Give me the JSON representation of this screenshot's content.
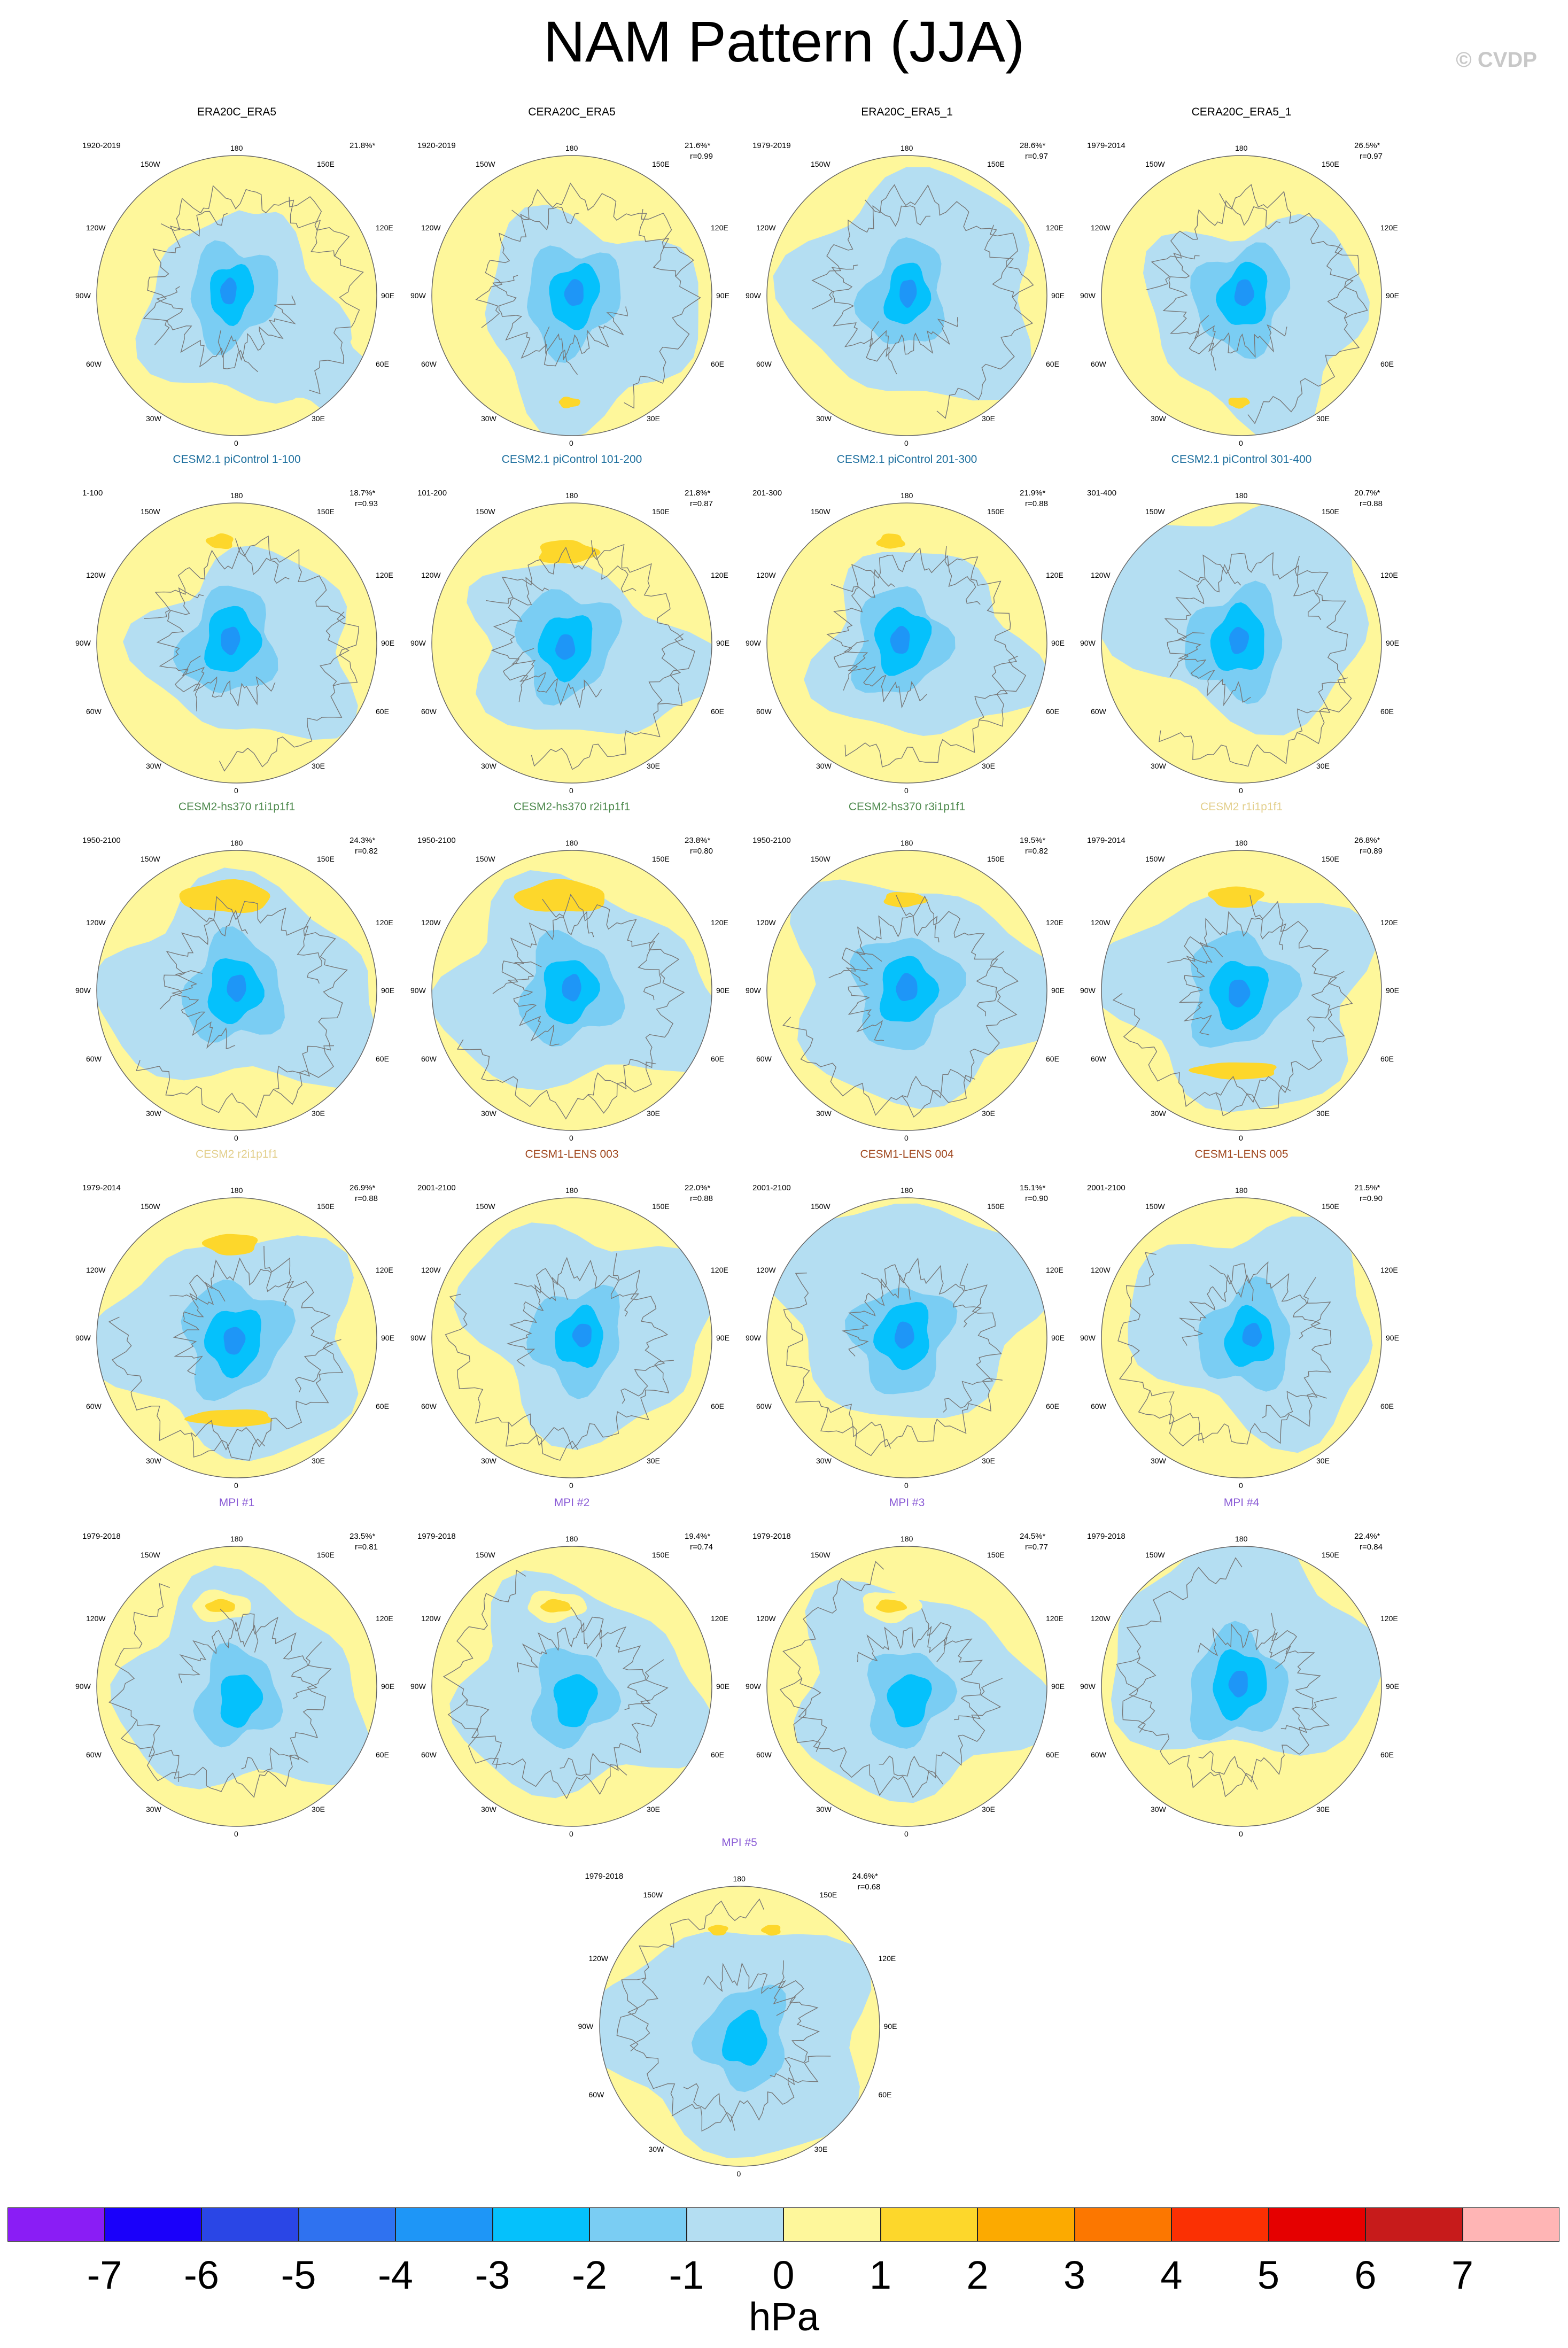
{
  "title": "NAM Pattern (JJA)",
  "watermark": "© CVDP",
  "colorbar": {
    "unit": "hPa",
    "ticks": [
      "-7",
      "-6",
      "-5",
      "-4",
      "-3",
      "-2",
      "-1",
      "0",
      "1",
      "2",
      "3",
      "4",
      "5",
      "6",
      "7"
    ],
    "colors": [
      "#8a1df5",
      "#1a00fa",
      "#2a46e6",
      "#2f72f0",
      "#1e96f7",
      "#05c1fc",
      "#7acdf3",
      "#b4def2",
      "#fef79b",
      "#fdd72b",
      "#fcaa00",
      "#fc7700",
      "#fb3003",
      "#e50000",
      "#c71b1b",
      "#ffb5b5"
    ]
  },
  "map_labels": {
    "top": "180",
    "bottom": "0",
    "left": "90W",
    "right": "90E",
    "ul": "150W",
    "ur": "150E",
    "lu": "120W",
    "ru": "120E",
    "ll": "60W",
    "rl": "60E",
    "bl": "30W",
    "br": "30E"
  },
  "panels": [
    {
      "title": "ERA20C_ERA5",
      "title_color": "#000000",
      "period": "1920-2019",
      "pct": "21.8%*",
      "r": "",
      "pattern": 0,
      "row": 0,
      "col": 0
    },
    {
      "title": "CERA20C_ERA5",
      "title_color": "#000000",
      "period": "1920-2019",
      "pct": "21.6%*",
      "r": "r=0.99",
      "pattern": 1,
      "row": 0,
      "col": 1
    },
    {
      "title": "ERA20C_ERA5_1",
      "title_color": "#000000",
      "period": "1979-2019",
      "pct": "28.6%*",
      "r": "r=0.97",
      "pattern": 2,
      "row": 0,
      "col": 2
    },
    {
      "title": "CERA20C_ERA5_1",
      "title_color": "#000000",
      "period": "1979-2014",
      "pct": "26.5%*",
      "r": "r=0.97",
      "pattern": 1,
      "row": 0,
      "col": 3
    },
    {
      "title": "CESM2.1 piControl 1-100",
      "title_color": "#1d6f9e",
      "period": "1-100",
      "pct": "18.7%*",
      "r": "r=0.93",
      "pattern": 3,
      "row": 1,
      "col": 0
    },
    {
      "title": "CESM2.1 piControl 101-200",
      "title_color": "#1d6f9e",
      "period": "101-200",
      "pct": "21.8%*",
      "r": "r=0.87",
      "pattern": 4,
      "row": 1,
      "col": 1
    },
    {
      "title": "CESM2.1 piControl 201-300",
      "title_color": "#1d6f9e",
      "period": "201-300",
      "pct": "21.9%*",
      "r": "r=0.88",
      "pattern": 3,
      "row": 1,
      "col": 2
    },
    {
      "title": "CESM2.1 piControl 301-400",
      "title_color": "#1d6f9e",
      "period": "301-400",
      "pct": "20.7%*",
      "r": "r=0.88",
      "pattern": 5,
      "row": 1,
      "col": 3
    },
    {
      "title": "CESM2-hs370 r1i1p1f1",
      "title_color": "#4e8a4e",
      "period": "1950-2100",
      "pct": "24.3%*",
      "r": "r=0.82",
      "pattern": 6,
      "row": 2,
      "col": 0
    },
    {
      "title": "CESM2-hs370 r2i1p1f1",
      "title_color": "#4e8a4e",
      "period": "1950-2100",
      "pct": "23.8%*",
      "r": "r=0.80",
      "pattern": 6,
      "row": 2,
      "col": 1
    },
    {
      "title": "CESM2-hs370 r3i1p1f1",
      "title_color": "#4e8a4e",
      "period": "1950-2100",
      "pct": "19.5%*",
      "r": "r=0.82",
      "pattern": 7,
      "row": 2,
      "col": 2
    },
    {
      "title": "CESM2 r1i1p1f1",
      "title_color": "#e3cf8c",
      "period": "1979-2014",
      "pct": "26.8%*",
      "r": "r=0.89",
      "pattern": 8,
      "row": 2,
      "col": 3
    },
    {
      "title": "CESM2 r2i1p1f1",
      "title_color": "#e3cf8c",
      "period": "1979-2014",
      "pct": "26.9%*",
      "r": "r=0.88",
      "pattern": 8,
      "row": 3,
      "col": 0
    },
    {
      "title": "CESM1-LENS 003",
      "title_color": "#a0481f",
      "period": "2001-2100",
      "pct": "22.0%*",
      "r": "r=0.88",
      "pattern": 9,
      "row": 3,
      "col": 1
    },
    {
      "title": "CESM1-LENS 004",
      "title_color": "#a0481f",
      "period": "2001-2100",
      "pct": "15.1%*",
      "r": "r=0.90",
      "pattern": 5,
      "row": 3,
      "col": 2
    },
    {
      "title": "CESM1-LENS 005",
      "title_color": "#a0481f",
      "period": "2001-2100",
      "pct": "21.5%*",
      "r": "r=0.90",
      "pattern": 9,
      "row": 3,
      "col": 3
    },
    {
      "title": "MPI #1",
      "title_color": "#8a5bd6",
      "period": "1979-2018",
      "pct": "23.5%*",
      "r": "r=0.81",
      "pattern": 10,
      "row": 4,
      "col": 0
    },
    {
      "title": "MPI #2",
      "title_color": "#8a5bd6",
      "period": "1979-2018",
      "pct": "19.4%*",
      "r": "r=0.74",
      "pattern": 10,
      "row": 4,
      "col": 1
    },
    {
      "title": "MPI #3",
      "title_color": "#8a5bd6",
      "period": "1979-2018",
      "pct": "24.5%*",
      "r": "r=0.77",
      "pattern": 10,
      "row": 4,
      "col": 2
    },
    {
      "title": "MPI #4",
      "title_color": "#8a5bd6",
      "period": "1979-2018",
      "pct": "22.4%*",
      "r": "r=0.84",
      "pattern": 5,
      "row": 4,
      "col": 3
    },
    {
      "title": "MPI #5",
      "title_color": "#8a5bd6",
      "period": "1979-2018",
      "pct": "24.6%*",
      "r": "r=0.68",
      "pattern": 11,
      "row": 5,
      "col": 1.5
    }
  ]
}
